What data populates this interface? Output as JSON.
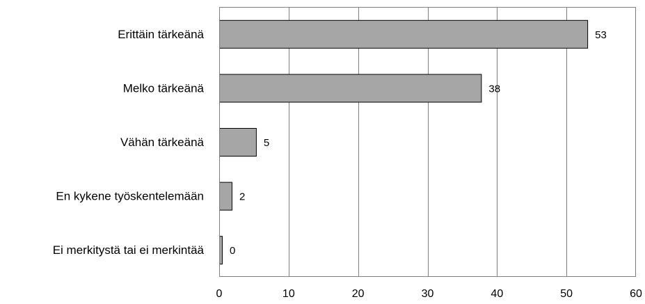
{
  "chart_data": {
    "type": "bar",
    "orientation": "horizontal",
    "title": "",
    "xlabel": "",
    "ylabel": "",
    "categories": [
      "Erittäin tärkeänä",
      "Melko tärkeänä",
      "Vähän tärkeänä",
      "En kykene työskentelemään",
      "Ei merkitystä tai ei merkintää"
    ],
    "values": [
      53,
      38,
      5,
      2,
      0
    ],
    "value_labels": [
      "53",
      "38",
      "5",
      "2",
      "0"
    ],
    "bar_values": [
      53,
      37.7,
      5.3,
      1.8,
      0.4
    ],
    "xlim": [
      0,
      60
    ],
    "xticks": [
      0,
      10,
      20,
      30,
      40,
      50,
      60
    ],
    "xtick_labels": [
      "0",
      "10",
      "20",
      "30",
      "40",
      "50",
      "60"
    ],
    "grid": "vertical",
    "legend": "none",
    "bar_color": "#a6a6a6",
    "bar_edge_color": "#000000",
    "grid_color": "#808080"
  }
}
